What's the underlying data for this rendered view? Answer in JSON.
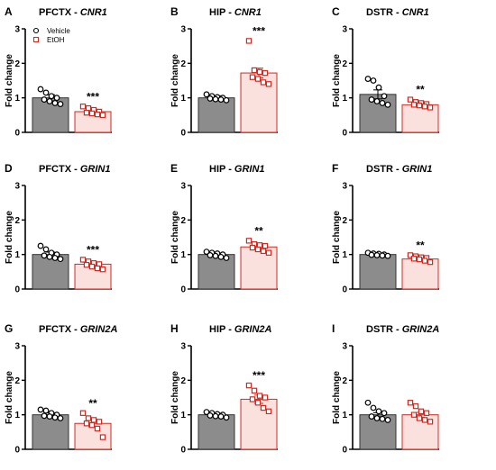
{
  "colors": {
    "vehicle_bar": "#8c8c8c",
    "etoh_bar": "#fbe1de",
    "etoh_edge": "#d22a20",
    "axis": "#000000"
  },
  "legend": {
    "items": [
      {
        "label": "Vehicle",
        "marker": "circle-open",
        "color": "#000000"
      },
      {
        "label": "EtOH",
        "marker": "square-open",
        "color": "#d22a20"
      }
    ]
  },
  "chart_data": [
    {
      "type": "bar",
      "panel": "A",
      "title_region": "PFCTX",
      "title_gene": "CNR1",
      "ylabel": "Fold change",
      "ylim": [
        0,
        3
      ],
      "yticks": [
        "0",
        "1",
        "2",
        "3"
      ],
      "categories": [
        "Vehicle",
        "EtOH"
      ],
      "values": [
        1.0,
        0.6
      ],
      "errors": [
        0.09,
        0.07
      ],
      "points": [
        [
          1.25,
          1.15,
          1.05,
          1.0,
          0.95,
          0.9,
          0.85,
          0.82
        ],
        [
          0.75,
          0.7,
          0.65,
          0.6,
          0.57,
          0.55,
          0.52,
          0.5
        ]
      ],
      "significance": "***"
    },
    {
      "type": "bar",
      "panel": "B",
      "title_region": "HIP",
      "title_gene": "CNR1",
      "ylabel": "Fold change",
      "ylim": [
        0,
        3
      ],
      "yticks": [
        "0",
        "1",
        "2",
        "3"
      ],
      "categories": [
        "Vehicle",
        "EtOH"
      ],
      "values": [
        1.0,
        1.72
      ],
      "errors": [
        0.06,
        0.14
      ],
      "points": [
        [
          1.1,
          1.05,
          1.02,
          1.0,
          0.98,
          0.96,
          0.95,
          0.93
        ],
        [
          2.65,
          1.8,
          1.75,
          1.72,
          1.6,
          1.55,
          1.45,
          1.4
        ]
      ],
      "significance": "***"
    },
    {
      "type": "bar",
      "panel": "C",
      "title_region": "DSTR",
      "title_gene": "CNR1",
      "ylabel": "Fold change",
      "ylim": [
        0,
        3
      ],
      "yticks": [
        "0",
        "1",
        "2",
        "3"
      ],
      "categories": [
        "Vehicle",
        "EtOH"
      ],
      "values": [
        1.1,
        0.8
      ],
      "errors": [
        0.13,
        0.06
      ],
      "points": [
        [
          1.55,
          1.5,
          1.3,
          1.05,
          0.95,
          0.9,
          0.85,
          0.8
        ],
        [
          0.95,
          0.88,
          0.85,
          0.82,
          0.8,
          0.78,
          0.75,
          0.72
        ]
      ],
      "significance": "**"
    },
    {
      "type": "bar",
      "panel": "D",
      "title_region": "PFCTX",
      "title_gene": "GRIN1",
      "ylabel": "Fold change",
      "ylim": [
        0,
        3
      ],
      "yticks": [
        "0",
        "1",
        "2",
        "3"
      ],
      "categories": [
        "Vehicle",
        "EtOH"
      ],
      "values": [
        1.0,
        0.72
      ],
      "errors": [
        0.07,
        0.06
      ],
      "points": [
        [
          1.25,
          1.15,
          1.05,
          1.0,
          0.97,
          0.93,
          0.9,
          0.87
        ],
        [
          0.85,
          0.8,
          0.75,
          0.72,
          0.7,
          0.65,
          0.6,
          0.57
        ]
      ],
      "significance": "***"
    },
    {
      "type": "bar",
      "panel": "E",
      "title_region": "HIP",
      "title_gene": "GRIN1",
      "ylabel": "Fold change",
      "ylim": [
        0,
        3
      ],
      "yticks": [
        "0",
        "1",
        "2",
        "3"
      ],
      "categories": [
        "Vehicle",
        "EtOH"
      ],
      "values": [
        1.0,
        1.22
      ],
      "errors": [
        0.04,
        0.08
      ],
      "points": [
        [
          1.08,
          1.05,
          1.03,
          1.0,
          0.98,
          0.96,
          0.93,
          0.9
        ],
        [
          1.4,
          1.3,
          1.27,
          1.25,
          1.2,
          1.15,
          1.1,
          1.05
        ]
      ],
      "significance": "**"
    },
    {
      "type": "bar",
      "panel": "F",
      "title_region": "DSTR",
      "title_gene": "GRIN1",
      "ylabel": "Fold change",
      "ylim": [
        0,
        3
      ],
      "yticks": [
        "0",
        "1",
        "2",
        "3"
      ],
      "categories": [
        "Vehicle",
        "EtOH"
      ],
      "values": [
        1.0,
        0.87
      ],
      "errors": [
        0.03,
        0.05
      ],
      "points": [
        [
          1.05,
          1.03,
          1.02,
          1.0,
          0.99,
          0.98,
          0.97,
          0.96
        ],
        [
          0.98,
          0.95,
          0.92,
          0.9,
          0.88,
          0.86,
          0.82,
          0.78
        ]
      ],
      "significance": "**"
    },
    {
      "type": "bar",
      "panel": "G",
      "title_region": "PFCTX",
      "title_gene": "GRIN2A",
      "ylabel": "Fold change",
      "ylim": [
        0,
        3
      ],
      "yticks": [
        "0",
        "1",
        "2",
        "3"
      ],
      "categories": [
        "Vehicle",
        "EtOH"
      ],
      "values": [
        1.0,
        0.75
      ],
      "errors": [
        0.06,
        0.1
      ],
      "points": [
        [
          1.15,
          1.12,
          1.05,
          1.0,
          0.97,
          0.95,
          0.92,
          0.9
        ],
        [
          1.05,
          0.9,
          0.85,
          0.8,
          0.75,
          0.7,
          0.6,
          0.35
        ]
      ],
      "significance": "**"
    },
    {
      "type": "bar",
      "panel": "H",
      "title_region": "HIP",
      "title_gene": "GRIN2A",
      "ylabel": "Fold change",
      "ylim": [
        0,
        3
      ],
      "yticks": [
        "0",
        "1",
        "2",
        "3"
      ],
      "categories": [
        "Vehicle",
        "EtOH"
      ],
      "values": [
        1.0,
        1.45
      ],
      "errors": [
        0.04,
        0.12
      ],
      "points": [
        [
          1.08,
          1.05,
          1.02,
          1.0,
          0.98,
          0.96,
          0.95,
          0.92
        ],
        [
          1.85,
          1.7,
          1.55,
          1.5,
          1.45,
          1.35,
          1.2,
          1.1
        ]
      ],
      "significance": "***"
    },
    {
      "type": "bar",
      "panel": "I",
      "title_region": "DSTR",
      "title_gene": "GRIN2A",
      "ylabel": "Fold change",
      "ylim": [
        0,
        3
      ],
      "yticks": [
        "0",
        "1",
        "2",
        "3"
      ],
      "categories": [
        "Vehicle",
        "EtOH"
      ],
      "values": [
        1.0,
        1.0
      ],
      "errors": [
        0.06,
        0.07
      ],
      "points": [
        [
          1.35,
          1.2,
          1.1,
          1.05,
          0.95,
          0.9,
          0.88,
          0.85
        ],
        [
          1.35,
          1.25,
          1.1,
          1.05,
          1.0,
          0.9,
          0.85,
          0.8
        ]
      ],
      "significance": ""
    }
  ]
}
